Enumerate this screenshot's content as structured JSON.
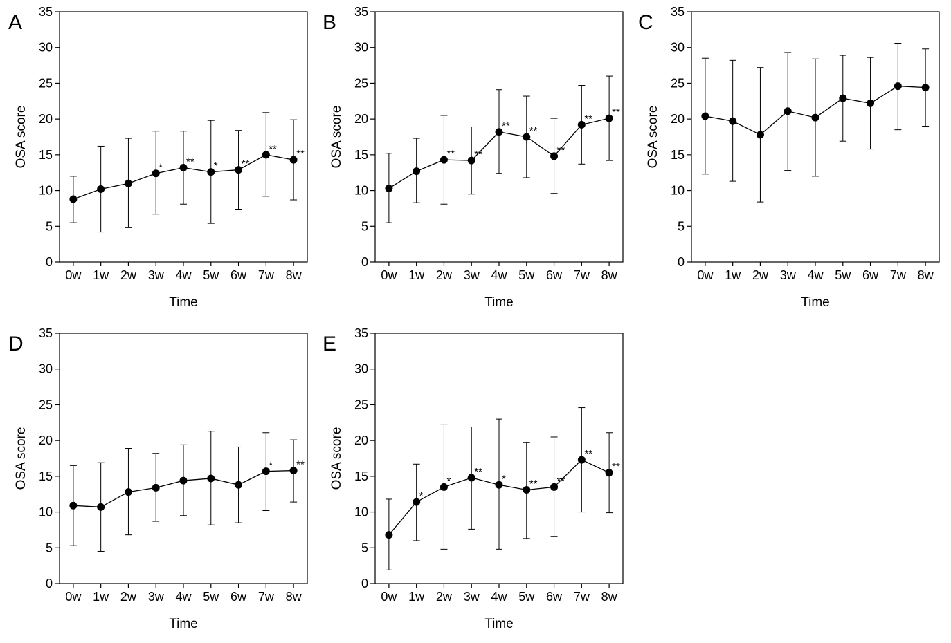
{
  "chart_data": [
    {
      "panel": "A",
      "type": "line",
      "categories": [
        "0w",
        "1w",
        "2w",
        "3w",
        "4w",
        "5w",
        "6w",
        "7w",
        "8w"
      ],
      "values": [
        8.8,
        10.2,
        11.0,
        12.4,
        13.2,
        12.6,
        12.9,
        15.0,
        14.3
      ],
      "error_upper": [
        12.0,
        16.2,
        17.3,
        18.3,
        18.3,
        19.8,
        18.4,
        20.9,
        19.9
      ],
      "error_lower": [
        5.5,
        4.2,
        4.8,
        6.7,
        8.1,
        5.4,
        7.3,
        9.2,
        8.7
      ],
      "significance": [
        "",
        "",
        "",
        "*",
        "**",
        "*",
        "**",
        "**",
        "**"
      ],
      "xlabel": "Time",
      "ylabel": "OSA score",
      "ylim": [
        0,
        35
      ],
      "yticks": [
        "0",
        "5",
        "10",
        "15",
        "20",
        "25",
        "30",
        "35"
      ]
    },
    {
      "panel": "B",
      "type": "line",
      "categories": [
        "0w",
        "1w",
        "2w",
        "3w",
        "4w",
        "5w",
        "6w",
        "7w",
        "8w"
      ],
      "values": [
        10.3,
        12.7,
        14.3,
        14.2,
        18.2,
        17.5,
        14.8,
        19.2,
        20.1
      ],
      "error_upper": [
        15.2,
        17.3,
        20.5,
        18.9,
        24.1,
        23.2,
        20.1,
        24.7,
        26.0
      ],
      "error_lower": [
        5.5,
        8.3,
        8.1,
        9.5,
        12.4,
        11.8,
        9.6,
        13.7,
        14.2
      ],
      "significance": [
        "",
        "",
        "**",
        "**",
        "**",
        "**",
        "**",
        "**",
        "**"
      ],
      "xlabel": "Time",
      "ylabel": "OSA score",
      "ylim": [
        0,
        35
      ],
      "yticks": [
        "0",
        "5",
        "10",
        "15",
        "20",
        "25",
        "30",
        "35"
      ]
    },
    {
      "panel": "C",
      "type": "line",
      "categories": [
        "0w",
        "1w",
        "2w",
        "3w",
        "4w",
        "5w",
        "6w",
        "7w",
        "8w"
      ],
      "values": [
        20.4,
        19.7,
        17.8,
        21.1,
        20.2,
        22.9,
        22.2,
        24.6,
        24.4
      ],
      "error_upper": [
        28.5,
        28.2,
        27.2,
        29.3,
        28.4,
        28.9,
        28.6,
        30.6,
        29.8
      ],
      "error_lower": [
        12.3,
        11.3,
        8.4,
        12.8,
        12.0,
        16.9,
        15.8,
        18.5,
        19.0
      ],
      "significance": [
        "",
        "",
        "",
        "",
        "",
        "",
        "",
        "",
        ""
      ],
      "xlabel": "Time",
      "ylabel": "OSA score",
      "ylim": [
        0,
        35
      ],
      "yticks": [
        "0",
        "5",
        "10",
        "15",
        "20",
        "25",
        "30",
        "35"
      ]
    },
    {
      "panel": "D",
      "type": "line",
      "categories": [
        "0w",
        "1w",
        "2w",
        "3w",
        "4w",
        "5w",
        "6w",
        "7w",
        "8w"
      ],
      "values": [
        10.9,
        10.7,
        12.8,
        13.4,
        14.4,
        14.7,
        13.8,
        15.7,
        15.8
      ],
      "error_upper": [
        16.5,
        16.9,
        18.9,
        18.2,
        19.4,
        21.3,
        19.1,
        21.1,
        20.1
      ],
      "error_lower": [
        5.3,
        4.5,
        6.8,
        8.7,
        9.5,
        8.2,
        8.5,
        10.2,
        11.4
      ],
      "significance": [
        "",
        "",
        "",
        "",
        "",
        "",
        "",
        "*",
        "**"
      ],
      "xlabel": "Time",
      "ylabel": "OSA score",
      "ylim": [
        0,
        35
      ],
      "yticks": [
        "0",
        "5",
        "10",
        "15",
        "20",
        "25",
        "30",
        "35"
      ]
    },
    {
      "panel": "E",
      "type": "line",
      "categories": [
        "0w",
        "1w",
        "2w",
        "3w",
        "4w",
        "5w",
        "6w",
        "7w",
        "8w"
      ],
      "values": [
        6.8,
        11.4,
        13.5,
        14.8,
        13.8,
        13.1,
        13.5,
        17.3,
        15.5
      ],
      "error_upper": [
        11.8,
        16.7,
        22.2,
        21.9,
        23.0,
        19.7,
        20.5,
        24.6,
        21.1
      ],
      "error_lower": [
        1.9,
        6.0,
        4.8,
        7.6,
        4.8,
        6.3,
        6.6,
        10.0,
        9.9
      ],
      "significance": [
        "",
        "*",
        "*",
        "**",
        "*",
        "**",
        "**",
        "**",
        "**"
      ],
      "xlabel": "Time",
      "ylabel": "OSA score",
      "ylim": [
        0,
        35
      ],
      "yticks": [
        "0",
        "5",
        "10",
        "15",
        "20",
        "25",
        "30",
        "35"
      ]
    }
  ]
}
